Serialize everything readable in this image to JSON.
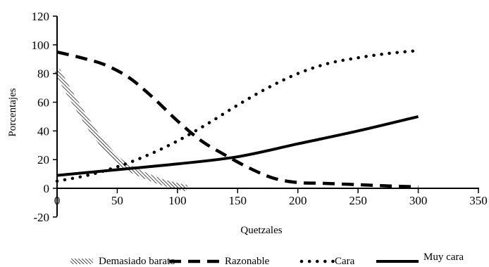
{
  "chart_data": {
    "type": "line",
    "xlabel": "Quetzales",
    "ylabel": "Porcentajes",
    "xlim": [
      0,
      350
    ],
    "ylim": [
      -20,
      120
    ],
    "xticks": [
      0,
      50,
      100,
      150,
      200,
      250,
      300,
      350
    ],
    "yticks": [
      -20,
      0,
      20,
      40,
      60,
      80,
      100,
      120
    ],
    "grid": false,
    "legend_position": "bottom",
    "series": [
      {
        "name": "Demasiado barato",
        "style": "hatched",
        "color": "#000000",
        "x": [
          0,
          10,
          20,
          30,
          40,
          50,
          60,
          70,
          80,
          90,
          100,
          108
        ],
        "y": [
          82,
          67,
          53,
          40,
          29,
          20,
          14,
          10,
          6.5,
          3.5,
          1.5,
          0
        ]
      },
      {
        "name": "Razonable",
        "style": "dashed",
        "color": "#000000",
        "x": [
          0,
          20,
          40,
          60,
          80,
          100,
          120,
          140,
          160,
          180,
          200,
          220,
          250,
          280,
          300
        ],
        "y": [
          95,
          91,
          86,
          77,
          63,
          47,
          33,
          23,
          14,
          7,
          4,
          3.5,
          2.5,
          1.5,
          1
        ]
      },
      {
        "name": "Cara",
        "style": "dotted",
        "color": "#000000",
        "x": [
          0,
          25,
          50,
          75,
          100,
          125,
          150,
          175,
          200,
          225,
          250,
          275,
          300
        ],
        "y": [
          5,
          9,
          15,
          23,
          33,
          45,
          58,
          70,
          80,
          87,
          91,
          94,
          96
        ]
      },
      {
        "name": "Muy cara",
        "style": "solid",
        "color": "#000000",
        "x": [
          0,
          50,
          100,
          150,
          200,
          250,
          300
        ],
        "y": [
          9,
          13,
          17,
          22,
          31,
          40,
          50
        ]
      }
    ]
  }
}
